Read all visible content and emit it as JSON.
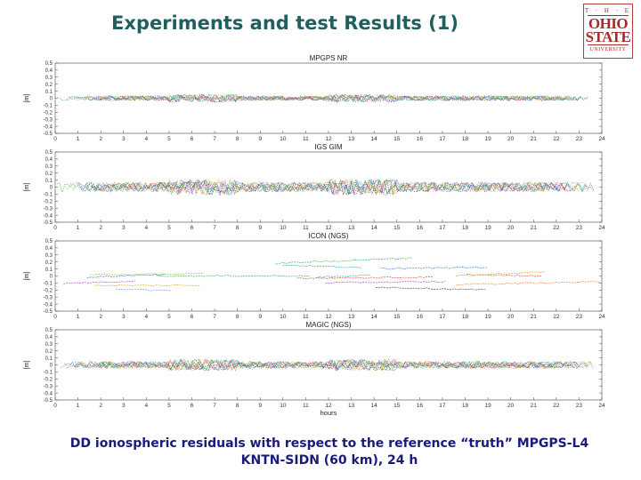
{
  "slide": {
    "title": "Experiments and test Results (1)",
    "caption_line1": "DD ionospheric residuals with respect to the reference “truth” MPGPS-L4",
    "caption_line2": "KNTN-SIDN (60 km), 24 h"
  },
  "logo": {
    "the": "T · H · E",
    "ohio": "OHIO",
    "state": "STATE",
    "university": "UNIVERSITY",
    "color": "#a52a2a"
  },
  "chart_data": [
    {
      "type": "scatter",
      "title": "MPGPS NR",
      "ylabel": "[m]",
      "xlabel": "",
      "xlim": [
        0,
        24
      ],
      "ylim": [
        -0.5,
        0.5
      ],
      "xticks": [
        0,
        1,
        2,
        3,
        4,
        5,
        6,
        7,
        8,
        9,
        10,
        11,
        12,
        13,
        14,
        15,
        16,
        17,
        18,
        19,
        20,
        21,
        22,
        23,
        24
      ],
      "yticks": [
        0.5,
        0.4,
        0.3,
        0.2,
        0.1,
        0,
        -0.1,
        -0.2,
        -0.3,
        -0.4,
        -0.5
      ],
      "ytick_labels": [
        "0.5",
        "0.4",
        "0.3",
        "0.2",
        "0.1",
        "0",
        "-0.1",
        "-0.2",
        "-0.3",
        "-0.4",
        "-0.5"
      ],
      "style": "noise",
      "amplitude": 0.035,
      "grid": false
    },
    {
      "type": "scatter",
      "title": "IGS GIM",
      "ylabel": "[m]",
      "xlabel": "",
      "xlim": [
        0,
        24
      ],
      "ylim": [
        -0.5,
        0.5
      ],
      "xticks": [
        0,
        1,
        2,
        3,
        4,
        5,
        6,
        7,
        8,
        9,
        10,
        11,
        12,
        13,
        14,
        15,
        16,
        17,
        18,
        19,
        20,
        21,
        22,
        23,
        24
      ],
      "yticks": [
        0.5,
        0.4,
        0.3,
        0.2,
        0.1,
        0,
        -0.1,
        -0.2,
        -0.3,
        -0.4,
        -0.5
      ],
      "ytick_labels": [
        "0.5",
        "0.4",
        "0.3",
        "0.2",
        "0.1",
        "0",
        "-0.1",
        "-0.2",
        "-0.3",
        "-0.4",
        "-0.5"
      ],
      "style": "noise",
      "amplitude": 0.07,
      "grid": false
    },
    {
      "type": "scatter",
      "title": "ICON (NGS)",
      "ylabel": "[m]",
      "xlabel": "",
      "xlim": [
        0,
        24
      ],
      "ylim": [
        -0.5,
        0.5
      ],
      "xticks": [
        0,
        1,
        2,
        3,
        4,
        5,
        6,
        7,
        8,
        9,
        10,
        11,
        12,
        13,
        14,
        15,
        16,
        17,
        18,
        19,
        20,
        21,
        22,
        23,
        24
      ],
      "yticks": [
        0.5,
        0.4,
        0.3,
        0.2,
        0.1,
        0,
        -0.1,
        -0.2,
        -0.3,
        -0.4,
        -0.5
      ],
      "ytick_labels": [
        "0.5",
        "0.4",
        "0.3",
        "0.2",
        "0.1",
        "0",
        "-0.1",
        "-0.2",
        "-0.3",
        "-0.4",
        "-0.5"
      ],
      "style": "segments",
      "amplitude": 0.2,
      "grid": false
    },
    {
      "type": "scatter",
      "title": "MAGIC (NGS)",
      "ylabel": "[m]",
      "xlabel": "hours",
      "xlim": [
        0,
        24
      ],
      "ylim": [
        -0.5,
        0.5
      ],
      "xticks": [
        0,
        1,
        2,
        3,
        4,
        5,
        6,
        7,
        8,
        9,
        10,
        11,
        12,
        13,
        14,
        15,
        16,
        17,
        18,
        19,
        20,
        21,
        22,
        23,
        24
      ],
      "yticks": [
        0.5,
        0.4,
        0.3,
        0.2,
        0.1,
        0,
        -0.1,
        -0.2,
        -0.3,
        -0.4,
        -0.5
      ],
      "ytick_labels": [
        "0.5",
        "0.4",
        "0.3",
        "0.2",
        "0.1",
        "0",
        "-0.1",
        "-0.2",
        "-0.3",
        "-0.4",
        "-0.5"
      ],
      "style": "noise",
      "amplitude": 0.05,
      "grid": false
    }
  ],
  "series_colors": [
    "#e03030",
    "#2060d0",
    "#20a040",
    "#d0a000",
    "#a030c0",
    "#00a0b0",
    "#303030",
    "#f07020",
    "#7080e0",
    "#80c040"
  ]
}
